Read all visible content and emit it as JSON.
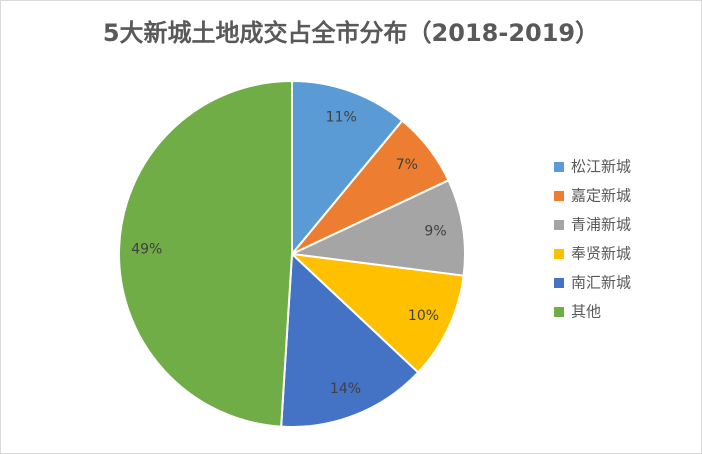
{
  "chart_data": {
    "type": "pie",
    "title": "5大新城土地成交占全市分布（2018-2019）",
    "categories": [
      "松江新城",
      "嘉定新城",
      "青浦新城",
      "奉贤新城",
      "南汇新城",
      "其他"
    ],
    "values": [
      11,
      7,
      9,
      10,
      14,
      49
    ],
    "value_labels": [
      "11%",
      "7%",
      "9%",
      "10%",
      "14%",
      "49%"
    ],
    "colors": [
      "#5b9bd5",
      "#ed7d31",
      "#a5a5a5",
      "#ffc000",
      "#4472c4",
      "#70ad47"
    ],
    "legend": "right"
  }
}
